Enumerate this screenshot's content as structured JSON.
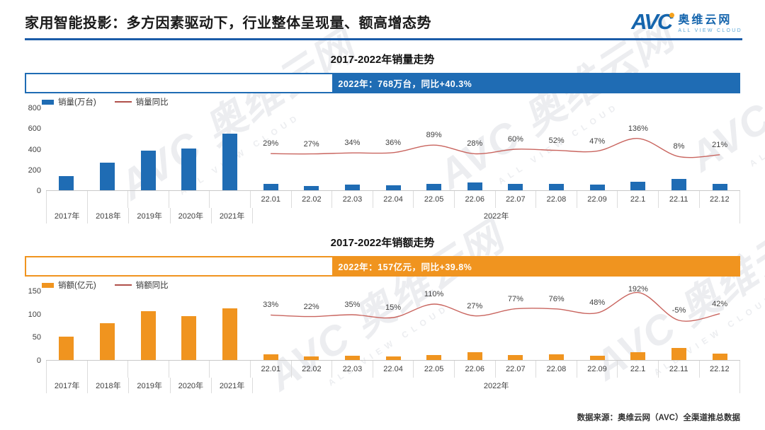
{
  "header": {
    "title": "家用智能投影：多方因素驱动下，行业整体呈现量、额高增态势",
    "logo": {
      "mark": "AVC",
      "name_cn": "奥维云网",
      "name_en": "ALL VIEW CLOUD"
    }
  },
  "watermark": {
    "line1": "AVC 奥维云网",
    "line2": "ALL VIEW CLOUD"
  },
  "footer": {
    "source": "数据来源：奥维云网（AVC）全渠道推总数据"
  },
  "chart_data": [
    {
      "type": "bar+line",
      "title": "2017-2022年销量走势",
      "banner": "2022年：768万台，同比+40.3%",
      "legend": [
        {
          "label": "销量(万台)",
          "swatch": "bar",
          "color": "#1F6CB4"
        },
        {
          "label": "销量同比",
          "swatch": "line",
          "color": "#B0504A"
        }
      ],
      "categories": [
        "2017年",
        "2018年",
        "2019年",
        "2020年",
        "2021年",
        "22.01",
        "22.02",
        "22.03",
        "22.04",
        "22.05",
        "22.06",
        "22.07",
        "22.08",
        "22.09",
        "22.1",
        "22.11",
        "22.12"
      ],
      "group_label": "2022年",
      "bar_values": [
        140,
        270,
        385,
        405,
        548,
        59,
        43,
        54,
        48,
        59,
        75,
        64,
        64,
        54,
        81,
        107,
        60
      ],
      "line_values_pct": [
        29,
        27,
        34,
        36,
        89,
        28,
        60,
        52,
        47,
        136,
        8,
        21
      ],
      "pct_labels": [
        "29%",
        "27%",
        "34%",
        "36%",
        "89%",
        "28%",
        "60%",
        "52%",
        "47%",
        "136%",
        "8%",
        "21%"
      ],
      "y_ticks": [
        0,
        200,
        400,
        600,
        800
      ],
      "ylim": [
        0,
        800
      ],
      "bar_color": "#1F6CB4",
      "line_color": "#C9655F",
      "banner_color": "#1F6CB4",
      "legend_position": "top-left",
      "grid": "off"
    },
    {
      "type": "bar+line",
      "title": "2017-2022年销额走势",
      "banner": "2022年：157亿元，同比+39.8%",
      "legend": [
        {
          "label": "销额(亿元)",
          "swatch": "bar",
          "color": "#F0941F"
        },
        {
          "label": "销额同比",
          "swatch": "line",
          "color": "#B0504A"
        }
      ],
      "categories": [
        "2017年",
        "2018年",
        "2019年",
        "2020年",
        "2021年",
        "22.01",
        "22.02",
        "22.03",
        "22.04",
        "22.05",
        "22.06",
        "22.07",
        "22.08",
        "22.09",
        "22.1",
        "22.11",
        "22.12"
      ],
      "group_label": "2022年",
      "bar_values": [
        50,
        80,
        105,
        95,
        112,
        13,
        8,
        9,
        7,
        11.5,
        17.5,
        11,
        12,
        9.5,
        17.5,
        26.5,
        14.5
      ],
      "line_values_pct": [
        33,
        22,
        35,
        15,
        110,
        27,
        77,
        76,
        48,
        192,
        -5,
        42
      ],
      "pct_labels": [
        "33%",
        "22%",
        "35%",
        "15%",
        "110%",
        "27%",
        "77%",
        "76%",
        "48%",
        "192%",
        "-5%",
        "42%"
      ],
      "y_ticks": [
        0,
        50,
        100,
        150
      ],
      "ylim": [
        0,
        150
      ],
      "bar_color": "#F0941F",
      "line_color": "#C9655F",
      "banner_color": "#F0941F",
      "legend_position": "top-left",
      "grid": "off"
    }
  ]
}
